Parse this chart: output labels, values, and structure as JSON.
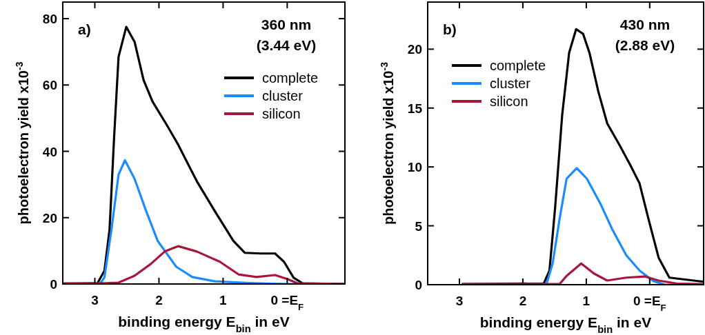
{
  "chart_data": [
    {
      "type": "line",
      "xlabel": "binding energy E$_{bin}$ in eV",
      "ylabel": "photoelectron yield x10$^{-3}$",
      "xlim": [
        3.5,
        -0.9
      ],
      "ylim": [
        0,
        85
      ],
      "xticks": [
        3,
        2,
        1,
        {
          "value": 0,
          "label": "0 =E$_{F}$"
        }
      ],
      "yticks": [
        0,
        20,
        40,
        60,
        80
      ],
      "grid": false,
      "legend": "top right",
      "line_style": "solid",
      "annotations": [
        "a)",
        "360 nm",
        "(3.44 eV)"
      ],
      "series": [
        {
          "name": "complete",
          "color": "#000000",
          "x": [
            3.5,
            2.96,
            2.85,
            2.77,
            2.7,
            2.63,
            2.51,
            2.38,
            2.24,
            2.1,
            1.88,
            1.7,
            1.41,
            1.13,
            0.84,
            0.66,
            0.41,
            0.19,
            0.05,
            -0.1,
            -0.24,
            -0.9
          ],
          "values": [
            0,
            0.2,
            4,
            16.5,
            44,
            68.5,
            77.5,
            73,
            61.5,
            55,
            48,
            42,
            31,
            22,
            13,
            9.4,
            9.2,
            9.2,
            6.7,
            1.9,
            0.2,
            0
          ]
        },
        {
          "name": "cluster",
          "color": "#1a8cff",
          "x": [
            3.5,
            2.92,
            2.85,
            2.74,
            2.63,
            2.53,
            2.38,
            2.2,
            2.02,
            1.73,
            1.48,
            1.13,
            0.59,
            0,
            -0.9
          ],
          "values": [
            0,
            0,
            2,
            16.5,
            33,
            37.3,
            31.7,
            22,
            13,
            5.2,
            2.1,
            0.8,
            0.3,
            0,
            0
          ]
        },
        {
          "name": "silicon",
          "color": "#a8173a",
          "x": [
            3.5,
            2.8,
            2.63,
            2.38,
            2.13,
            1.91,
            1.7,
            1.41,
            1.05,
            0.76,
            0.48,
            0.19,
            0,
            -0.16,
            -0.9
          ],
          "values": [
            0.2,
            0.3,
            0.4,
            2.5,
            6,
            9.8,
            11.4,
            9.8,
            6.7,
            2.9,
            2.1,
            2.7,
            1.5,
            0.2,
            0
          ]
        }
      ]
    },
    {
      "type": "line",
      "xlabel": "binding energy E$_{bin}$ in eV",
      "ylabel": "photoelectron yield x10$^{-3}$",
      "xlim": [
        3.5,
        -0.85
      ],
      "ylim": [
        0,
        24
      ],
      "xticks": [
        3,
        2,
        1,
        {
          "value": 0,
          "label": "0 =E$_{F}$"
        }
      ],
      "yticks": [
        0,
        5,
        10,
        15,
        20
      ],
      "grid": false,
      "legend": "top left",
      "line_style": "solid",
      "annotations": [
        "b)",
        "430 nm",
        "(2.88 eV)"
      ],
      "series": [
        {
          "name": "complete",
          "color": "#000000",
          "x": [
            2.95,
            1.67,
            1.58,
            1.49,
            1.38,
            1.27,
            1.16,
            1.05,
            0.95,
            0.81,
            0.67,
            0.48,
            0.3,
            0.16,
            0.02,
            -0.14,
            -0.31,
            -0.85
          ],
          "values": [
            0.05,
            0.1,
            1.2,
            6.6,
            14.4,
            19.7,
            21.7,
            21.3,
            19.7,
            16.4,
            13.7,
            11.9,
            10.1,
            8.6,
            5.6,
            2.3,
            0.6,
            0.25
          ]
        },
        {
          "name": "cluster",
          "color": "#1a8cff",
          "x": [
            2.95,
            1.63,
            1.53,
            1.42,
            1.31,
            1.15,
            0.99,
            0.77,
            0.59,
            0.37,
            0.16,
            -0.06,
            -0.24,
            -0.85
          ],
          "values": [
            0,
            0,
            1.8,
            5.6,
            9,
            9.9,
            9,
            6.8,
            4.7,
            2.5,
            1.2,
            0.3,
            0,
            0
          ]
        },
        {
          "name": "silicon",
          "color": "#a8173a",
          "x": [
            2.95,
            1.42,
            1.31,
            1.08,
            0.88,
            0.67,
            0.37,
            0.08,
            -0.14,
            -0.42,
            -0.85
          ],
          "values": [
            0.05,
            0.05,
            0.75,
            1.8,
            0.95,
            0.35,
            0.6,
            0.7,
            0.35,
            0.1,
            0.05
          ]
        }
      ]
    }
  ]
}
